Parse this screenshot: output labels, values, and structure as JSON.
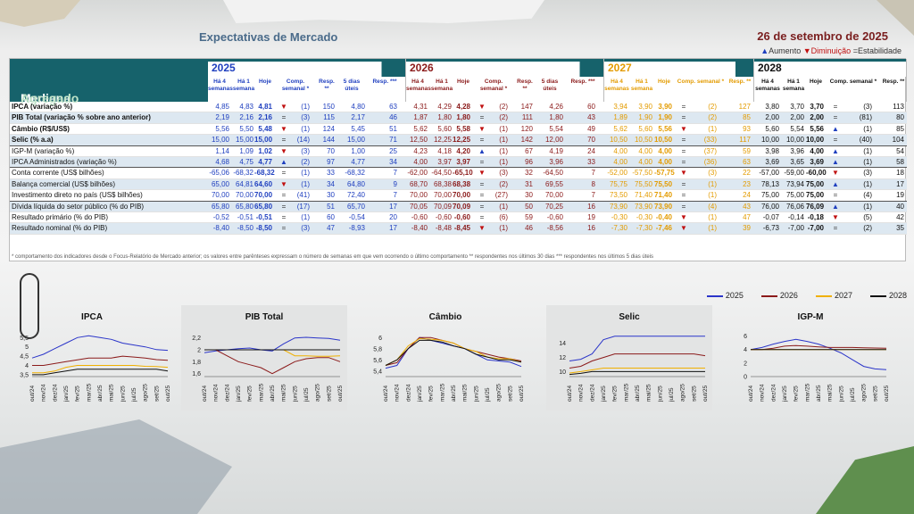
{
  "header": {
    "title": "Expectativas de Mercado",
    "date": "26 de setembro de 2025"
  },
  "legend": {
    "aumento": "Aumento",
    "diminuicao": "Diminuição",
    "estabilidade": "Estabilidade"
  },
  "table": {
    "mediana": "Mediana -",
    "agregado": "Agregado",
    "years": [
      {
        "label": "2025",
        "cols": [
          "Há 4 semanas",
          "Há 1 semana",
          "Hoje",
          "Comp. semanal *",
          "Resp. **",
          "5 dias úteis",
          "Resp. ***"
        ]
      },
      {
        "label": "2026",
        "cols": [
          "Há 4 semanas",
          "Há 1 semana",
          "Hoje",
          "Comp. semanal *",
          "Resp. **",
          "5 dias úteis",
          "Resp. ***"
        ]
      },
      {
        "label": "2027",
        "cols": [
          "Há 4 semanas",
          "Há 1 semana",
          "Hoje",
          "Comp. semanal *",
          "Resp. **"
        ]
      },
      {
        "label": "2028",
        "cols": [
          "Há 4 semanas",
          "Há 1 semana",
          "Hoje",
          "Comp. semanal *",
          "Resp. **"
        ]
      }
    ],
    "rows": [
      {
        "label": "IPCA (variação %)",
        "bold": true,
        "alt": false,
        "v25": [
          "4,85",
          "4,83",
          "4,81",
          "▼",
          "(1)",
          "150",
          "4,80",
          "63"
        ],
        "v26": [
          "4,31",
          "4,29",
          "4,28",
          "▼",
          "(2)",
          "147",
          "4,26",
          "60"
        ],
        "v27": [
          "3,94",
          "3,90",
          "3,90",
          "=",
          "(2)",
          "127"
        ],
        "v28": [
          "3,80",
          "3,70",
          "3,70",
          "=",
          "(3)",
          "113"
        ]
      },
      {
        "label": "PIB Total (variação % sobre ano anterior)",
        "bold": true,
        "alt": true,
        "v25": [
          "2,19",
          "2,16",
          "2,16",
          "=",
          "(3)",
          "115",
          "2,17",
          "46"
        ],
        "v26": [
          "1,87",
          "1,80",
          "1,80",
          "=",
          "(2)",
          "111",
          "1,80",
          "43"
        ],
        "v27": [
          "1,89",
          "1,90",
          "1,90",
          "=",
          "(2)",
          "85"
        ],
        "v28": [
          "2,00",
          "2,00",
          "2,00",
          "=",
          "(81)",
          "80"
        ]
      },
      {
        "label": "Câmbio (R$/US$)",
        "bold": true,
        "alt": false,
        "v25": [
          "5,56",
          "5,50",
          "5,48",
          "▼",
          "(1)",
          "124",
          "5,45",
          "51"
        ],
        "v26": [
          "5,62",
          "5,60",
          "5,58",
          "▼",
          "(1)",
          "120",
          "5,54",
          "49"
        ],
        "v27": [
          "5,62",
          "5,60",
          "5,56",
          "▼",
          "(1)",
          "93"
        ],
        "v28": [
          "5,60",
          "5,54",
          "5,56",
          "▲",
          "(1)",
          "85"
        ]
      },
      {
        "label": "Selic (% a.a)",
        "bold": true,
        "alt": true,
        "sep": true,
        "v25": [
          "15,00",
          "15,00",
          "15,00",
          "=",
          "(14)",
          "144",
          "15,00",
          "71"
        ],
        "v26": [
          "12,50",
          "12,25",
          "12,25",
          "=",
          "(1)",
          "142",
          "12,00",
          "70"
        ],
        "v27": [
          "10,50",
          "10,50",
          "10,50",
          "=",
          "(33)",
          "117"
        ],
        "v28": [
          "10,00",
          "10,00",
          "10,00",
          "=",
          "(40)",
          "104"
        ]
      },
      {
        "label": "IGP-M (variação %)",
        "bold": false,
        "alt": false,
        "v25": [
          "1,14",
          "1,09",
          "1,02",
          "▼",
          "(3)",
          "70",
          "1,00",
          "25"
        ],
        "v26": [
          "4,23",
          "4,18",
          "4,20",
          "▲",
          "(1)",
          "67",
          "4,19",
          "24"
        ],
        "v27": [
          "4,00",
          "4,00",
          "4,00",
          "=",
          "(37)",
          "59"
        ],
        "v28": [
          "3,98",
          "3,96",
          "4,00",
          "▲",
          "(1)",
          "54"
        ]
      },
      {
        "label": "IPCA Administrados (variação %)",
        "bold": false,
        "alt": true,
        "sep": true,
        "v25": [
          "4,68",
          "4,75",
          "4,77",
          "▲",
          "(2)",
          "97",
          "4,77",
          "34"
        ],
        "v26": [
          "4,00",
          "3,97",
          "3,97",
          "=",
          "(1)",
          "96",
          "3,96",
          "33"
        ],
        "v27": [
          "4,00",
          "4,00",
          "4,00",
          "=",
          "(36)",
          "63"
        ],
        "v28": [
          "3,69",
          "3,65",
          "3,69",
          "▲",
          "(1)",
          "58"
        ]
      },
      {
        "label": "Conta corrente (US$ bilhões)",
        "bold": false,
        "alt": false,
        "v25": [
          "-65,06",
          "-68,32",
          "-68,32",
          "=",
          "(1)",
          "33",
          "-68,32",
          "7"
        ],
        "v26": [
          "-62,00",
          "-64,50",
          "-65,10",
          "▼",
          "(3)",
          "32",
          "-64,50",
          "7"
        ],
        "v27": [
          "-52,00",
          "-57,50",
          "-57,75",
          "▼",
          "(3)",
          "22"
        ],
        "v28": [
          "-57,00",
          "-59,00",
          "-60,00",
          "▼",
          "(3)",
          "18"
        ]
      },
      {
        "label": "Balança comercial (US$ bilhões)",
        "bold": false,
        "alt": true,
        "v25": [
          "65,00",
          "64,81",
          "64,60",
          "▼",
          "(1)",
          "34",
          "64,80",
          "9"
        ],
        "v26": [
          "68,70",
          "68,38",
          "68,38",
          "=",
          "(2)",
          "31",
          "69,55",
          "8"
        ],
        "v27": [
          "75,75",
          "75,50",
          "75,50",
          "=",
          "(1)",
          "23"
        ],
        "v28": [
          "78,13",
          "73,94",
          "75,00",
          "▲",
          "(1)",
          "17"
        ]
      },
      {
        "label": "Investimento direto no país (US$ bilhões)",
        "bold": false,
        "alt": false,
        "sep": true,
        "v25": [
          "70,00",
          "70,00",
          "70,00",
          "=",
          "(41)",
          "30",
          "72,40",
          "7"
        ],
        "v26": [
          "70,00",
          "70,00",
          "70,00",
          "=",
          "(27)",
          "30",
          "70,00",
          "7"
        ],
        "v27": [
          "73,50",
          "71,40",
          "71,40",
          "=",
          "(1)",
          "24"
        ],
        "v28": [
          "75,00",
          "75,00",
          "75,00",
          "=",
          "(4)",
          "19"
        ]
      },
      {
        "label": "Dívida líquida do setor público (% do PIB)",
        "bold": false,
        "alt": true,
        "v25": [
          "65,80",
          "65,80",
          "65,80",
          "=",
          "(17)",
          "51",
          "65,70",
          "17"
        ],
        "v26": [
          "70,05",
          "70,09",
          "70,09",
          "=",
          "(1)",
          "50",
          "70,25",
          "16"
        ],
        "v27": [
          "73,90",
          "73,90",
          "73,90",
          "=",
          "(4)",
          "43"
        ],
        "v28": [
          "76,00",
          "76,06",
          "76,09",
          "▲",
          "(1)",
          "40"
        ]
      },
      {
        "label": "Resultado primário (% do PIB)",
        "bold": false,
        "alt": false,
        "v25": [
          "-0,52",
          "-0,51",
          "-0,51",
          "=",
          "(1)",
          "60",
          "-0,54",
          "20"
        ],
        "v26": [
          "-0,60",
          "-0,60",
          "-0,60",
          "=",
          "(6)",
          "59",
          "-0,60",
          "19"
        ],
        "v27": [
          "-0,30",
          "-0,30",
          "-0,40",
          "▼",
          "(1)",
          "47"
        ],
        "v28": [
          "-0,07",
          "-0,14",
          "-0,18",
          "▼",
          "(5)",
          "42"
        ]
      },
      {
        "label": "Resultado nominal (% do PIB)",
        "bold": false,
        "alt": true,
        "v25": [
          "-8,40",
          "-8,50",
          "-8,50",
          "=",
          "(3)",
          "47",
          "-8,93",
          "17"
        ],
        "v26": [
          "-8,40",
          "-8,48",
          "-8,45",
          "▼",
          "(1)",
          "46",
          "-8,56",
          "16"
        ],
        "v27": [
          "-7,30",
          "-7,30",
          "-7,46",
          "▼",
          "(1)",
          "39"
        ],
        "v28": [
          "-6,73",
          "-7,00",
          "-7,00",
          "=",
          "(2)",
          "35"
        ]
      }
    ],
    "footnote": "* comportamento dos indicadores desde o Focus-Relatório de Mercado anterior; os valores entre parênteses expressam o número de semanas em que vem ocorrendo o último comportamento ** respondentes nos últimos 30 dias *** respondentes nos últimos 5 dias úteis"
  },
  "chart_legend": [
    {
      "name": "2025",
      "color": "#2b35c9"
    },
    {
      "name": "2026",
      "color": "#8b1a1a"
    },
    {
      "name": "2027",
      "color": "#f0b000"
    },
    {
      "name": "2028",
      "color": "#111111"
    }
  ],
  "chart_data": [
    {
      "type": "line",
      "title": "IPCA",
      "x": [
        "out/24",
        "nov/24",
        "dez/24",
        "jan/25",
        "fev/25",
        "mar/25",
        "abr/25",
        "mai/25",
        "jun/25",
        "jul/25",
        "ago/25",
        "set/25",
        "out/25"
      ],
      "yticks": [
        "3,5",
        "4",
        "4,5",
        "5",
        "5,5"
      ],
      "ylim": [
        3.4,
        5.8
      ],
      "series": [
        {
          "name": "2025",
          "values": [
            4.4,
            4.6,
            4.9,
            5.2,
            5.5,
            5.6,
            5.5,
            5.4,
            5.2,
            5.1,
            5.0,
            4.85,
            4.81
          ]
        },
        {
          "name": "2026",
          "values": [
            4.0,
            4.0,
            4.1,
            4.2,
            4.3,
            4.4,
            4.4,
            4.4,
            4.5,
            4.45,
            4.4,
            4.31,
            4.28
          ]
        },
        {
          "name": "2027",
          "values": [
            3.6,
            3.6,
            3.7,
            3.9,
            4.0,
            4.0,
            4.0,
            4.0,
            4.0,
            4.0,
            3.95,
            3.94,
            3.9
          ]
        },
        {
          "name": "2028",
          "values": [
            3.5,
            3.5,
            3.6,
            3.7,
            3.8,
            3.8,
            3.8,
            3.8,
            3.8,
            3.8,
            3.8,
            3.8,
            3.7
          ]
        }
      ]
    },
    {
      "type": "line",
      "title": "PIB Total",
      "shaded": true,
      "x": [
        "out/24",
        "nov/24",
        "dez/24",
        "jan/25",
        "fev/25",
        "mar/25",
        "abr/25",
        "mai/25",
        "jun/25",
        "jul/25",
        "ago/25",
        "set/25",
        "out/25"
      ],
      "yticks": [
        "1,6",
        "1,8",
        "2",
        "2,2"
      ],
      "ylim": [
        1.55,
        2.3
      ],
      "series": [
        {
          "name": "2025",
          "values": [
            1.95,
            1.98,
            2.0,
            2.02,
            2.03,
            2.0,
            1.98,
            2.1,
            2.2,
            2.21,
            2.2,
            2.19,
            2.16
          ]
        },
        {
          "name": "2026",
          "values": [
            2.0,
            2.0,
            1.9,
            1.8,
            1.75,
            1.7,
            1.6,
            1.7,
            1.8,
            1.85,
            1.87,
            1.87,
            1.8
          ]
        },
        {
          "name": "2027",
          "values": [
            2.0,
            2.0,
            2.0,
            2.0,
            2.0,
            2.0,
            2.0,
            2.0,
            1.9,
            1.9,
            1.89,
            1.89,
            1.9
          ]
        },
        {
          "name": "2028",
          "values": [
            2.0,
            2.0,
            2.0,
            2.0,
            2.0,
            2.0,
            2.0,
            2.0,
            2.0,
            2.0,
            2.0,
            2.0,
            2.0
          ]
        }
      ]
    },
    {
      "type": "line",
      "title": "Câmbio",
      "x": [
        "out/24",
        "nov/24",
        "dez/24",
        "jan/25",
        "fev/25",
        "mar/25",
        "abr/25",
        "mai/25",
        "jun/25",
        "jul/25",
        "ago/25",
        "set/25",
        "out/25"
      ],
      "yticks": [
        "5,4",
        "5,6",
        "5,8",
        "6"
      ],
      "ylim": [
        5.3,
        6.1
      ],
      "series": [
        {
          "name": "2025",
          "values": [
            5.45,
            5.5,
            5.8,
            6.0,
            5.95,
            5.9,
            5.85,
            5.8,
            5.7,
            5.6,
            5.58,
            5.56,
            5.48
          ]
        },
        {
          "name": "2026",
          "values": [
            5.5,
            5.55,
            5.8,
            6.0,
            6.0,
            5.95,
            5.9,
            5.8,
            5.75,
            5.7,
            5.65,
            5.62,
            5.58
          ]
        },
        {
          "name": "2027",
          "values": [
            5.5,
            5.6,
            5.85,
            5.98,
            5.97,
            5.95,
            5.9,
            5.8,
            5.75,
            5.65,
            5.62,
            5.62,
            5.56
          ]
        },
        {
          "name": "2028",
          "values": [
            5.5,
            5.6,
            5.8,
            5.95,
            5.95,
            5.92,
            5.85,
            5.8,
            5.7,
            5.65,
            5.6,
            5.6,
            5.56
          ]
        }
      ]
    },
    {
      "type": "line",
      "title": "Selic",
      "shaded": true,
      "x": [
        "out/24",
        "nov/24",
        "dez/24",
        "jan/25",
        "fev/25",
        "mar/25",
        "abr/25",
        "mai/25",
        "jun/25",
        "jul/25",
        "ago/25",
        "set/25",
        "out/25"
      ],
      "yticks": [
        "10",
        "12",
        "14"
      ],
      "ylim": [
        9.3,
        15.6
      ],
      "series": [
        {
          "name": "2025",
          "values": [
            11.5,
            11.75,
            12.5,
            14.5,
            15.0,
            15.0,
            15.0,
            15.0,
            15.0,
            15.0,
            15.0,
            15.0,
            15.0
          ]
        },
        {
          "name": "2026",
          "values": [
            10.5,
            10.75,
            11.5,
            12.0,
            12.5,
            12.5,
            12.5,
            12.5,
            12.5,
            12.5,
            12.5,
            12.5,
            12.25
          ]
        },
        {
          "name": "2027",
          "values": [
            9.8,
            10.0,
            10.25,
            10.5,
            10.5,
            10.5,
            10.5,
            10.5,
            10.5,
            10.5,
            10.5,
            10.5,
            10.5
          ]
        },
        {
          "name": "2028",
          "values": [
            9.6,
            9.75,
            10.0,
            10.0,
            10.0,
            10.0,
            10.0,
            10.0,
            10.0,
            10.0,
            10.0,
            10.0,
            10.0
          ]
        }
      ]
    },
    {
      "type": "line",
      "title": "IGP-M",
      "x": [
        "out/24",
        "nov/24",
        "dez/24",
        "jan/25",
        "fev/25",
        "mar/25",
        "abr/25",
        "mai/25",
        "jun/25",
        "jul/25",
        "ago/25",
        "set/25",
        "out/25"
      ],
      "yticks": [
        "0",
        "2",
        "4",
        "6"
      ],
      "ylim": [
        0,
        6.6
      ],
      "series": [
        {
          "name": "2025",
          "values": [
            4.0,
            4.3,
            4.8,
            5.2,
            5.5,
            5.2,
            4.8,
            4.2,
            3.5,
            2.5,
            1.5,
            1.14,
            1.02
          ]
        },
        {
          "name": "2026",
          "values": [
            4.0,
            4.0,
            4.2,
            4.5,
            4.6,
            4.5,
            4.4,
            4.3,
            4.3,
            4.3,
            4.25,
            4.23,
            4.2
          ]
        },
        {
          "name": "2027",
          "values": [
            4.0,
            4.0,
            4.0,
            4.0,
            4.0,
            4.0,
            4.0,
            4.0,
            4.0,
            4.0,
            4.0,
            4.0,
            4.0
          ]
        },
        {
          "name": "2028",
          "values": [
            4.0,
            4.0,
            4.0,
            4.0,
            4.0,
            4.0,
            4.0,
            4.0,
            4.0,
            4.0,
            4.0,
            3.98,
            4.0
          ]
        }
      ]
    }
  ]
}
